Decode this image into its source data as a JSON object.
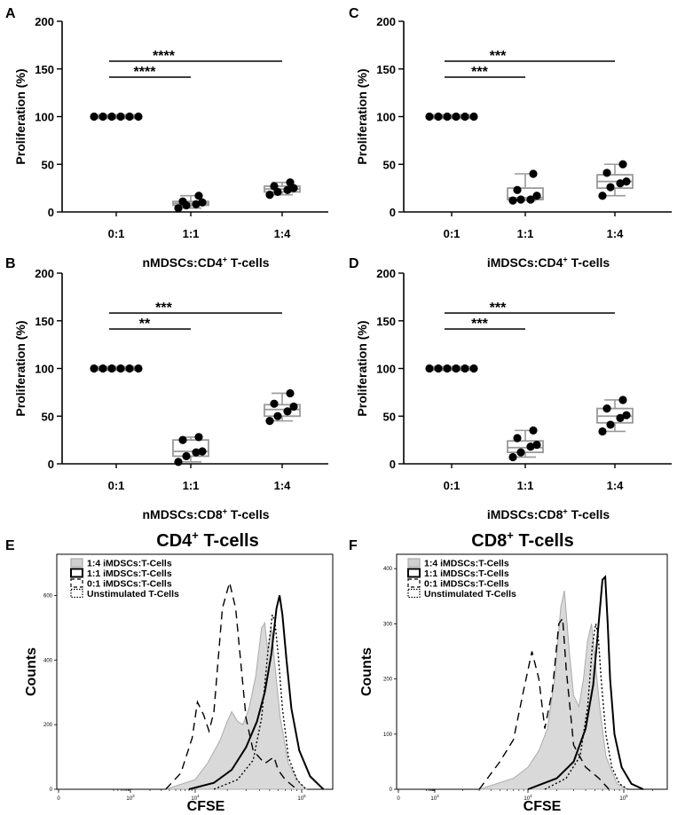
{
  "chart_data": [
    {
      "panel": "A",
      "type": "boxplot",
      "xlabel": "nMDSCs:CD4",
      "xlabel_sup": "+",
      "xlabel_suffix": " T-cells",
      "ylabel": "Proliferation (%)",
      "ylim": [
        0,
        200
      ],
      "yticks": [
        "0",
        "50",
        "100",
        "150",
        "200"
      ],
      "categories": [
        "0:1",
        "1:1",
        "1:4"
      ],
      "points": [
        [
          100,
          100,
          100,
          100,
          100,
          100
        ],
        [
          4,
          7,
          8,
          10,
          11,
          17
        ],
        [
          18,
          21,
          23,
          25,
          27,
          31
        ]
      ],
      "boxes": [
        {
          "min": 100,
          "q1": 100,
          "median": 100,
          "q3": 100,
          "max": 100
        },
        {
          "min": 4,
          "q1": 7,
          "median": 9,
          "q3": 11,
          "max": 17
        },
        {
          "min": 18,
          "q1": 21,
          "median": 24,
          "q3": 27,
          "max": 31
        }
      ],
      "significance": [
        {
          "from": "0:1",
          "to": "1:4",
          "label": "****"
        },
        {
          "from": "0:1",
          "to": "1:1",
          "label": "****"
        }
      ]
    },
    {
      "panel": "B",
      "type": "boxplot",
      "xlabel": "nMDSCs:CD8",
      "xlabel_sup": "+",
      "xlabel_suffix": " T-cells",
      "ylabel": "Proliferation (%)",
      "ylim": [
        0,
        200
      ],
      "yticks": [
        "0",
        "50",
        "100",
        "150",
        "200"
      ],
      "categories": [
        "0:1",
        "1:1",
        "1:4"
      ],
      "points": [
        [
          100,
          100,
          100,
          100,
          100,
          100
        ],
        [
          2,
          8,
          12,
          13,
          25,
          28
        ],
        [
          45,
          50,
          55,
          60,
          63,
          74
        ]
      ],
      "boxes": [
        {
          "min": 100,
          "q1": 100,
          "median": 100,
          "q3": 100,
          "max": 100
        },
        {
          "min": 2,
          "q1": 8,
          "median": 13,
          "q3": 25,
          "max": 28
        },
        {
          "min": 45,
          "q1": 50,
          "median": 57,
          "q3": 62,
          "max": 74
        }
      ],
      "significance": [
        {
          "from": "0:1",
          "to": "1:4",
          "label": "***"
        },
        {
          "from": "0:1",
          "to": "1:1",
          "label": "**"
        }
      ]
    },
    {
      "panel": "C",
      "type": "boxplot",
      "xlabel": "iMDSCs:CD4",
      "xlabel_sup": "+",
      "xlabel_suffix": " T-cells",
      "ylabel": "Proliferation (%)",
      "ylim": [
        0,
        200
      ],
      "yticks": [
        "0",
        "50",
        "100",
        "150",
        "200"
      ],
      "categories": [
        "0:1",
        "1:1",
        "1:4"
      ],
      "points": [
        [
          100,
          100,
          100,
          100,
          100,
          100
        ],
        [
          12,
          13,
          13,
          17,
          23,
          40
        ],
        [
          17,
          26,
          30,
          32,
          41,
          50
        ]
      ],
      "boxes": [
        {
          "min": 100,
          "q1": 100,
          "median": 100,
          "q3": 100,
          "max": 100
        },
        {
          "min": 12,
          "q1": 13,
          "median": 15,
          "q3": 25,
          "max": 40
        },
        {
          "min": 17,
          "q1": 25,
          "median": 32,
          "q3": 39,
          "max": 50
        }
      ],
      "significance": [
        {
          "from": "0:1",
          "to": "1:4",
          "label": "***"
        },
        {
          "from": "0:1",
          "to": "1:1",
          "label": "***"
        }
      ]
    },
    {
      "panel": "D",
      "type": "boxplot",
      "xlabel": "iMDSCs:CD8",
      "xlabel_sup": "+",
      "xlabel_suffix": " T-cells",
      "ylabel": "Proliferation (%)",
      "ylim": [
        0,
        200
      ],
      "yticks": [
        "0",
        "50",
        "100",
        "150",
        "200"
      ],
      "categories": [
        "0:1",
        "1:1",
        "1:4"
      ],
      "points": [
        [
          100,
          100,
          100,
          100,
          100,
          100
        ],
        [
          7,
          12,
          18,
          20,
          27,
          35
        ],
        [
          34,
          41,
          48,
          51,
          58,
          67
        ]
      ],
      "boxes": [
        {
          "min": 100,
          "q1": 100,
          "median": 100,
          "q3": 100,
          "max": 100
        },
        {
          "min": 7,
          "q1": 12,
          "median": 17,
          "q3": 24,
          "max": 35
        },
        {
          "min": 34,
          "q1": 43,
          "median": 50,
          "q3": 58,
          "max": 67
        }
      ],
      "significance": [
        {
          "from": "0:1",
          "to": "1:4",
          "label": "***"
        },
        {
          "from": "0:1",
          "to": "1:1",
          "label": "***"
        }
      ]
    },
    {
      "panel": "E",
      "type": "histogram",
      "title": "CD4",
      "title_sup": "+",
      "title_suffix": " T-cells",
      "xlabel": "CFSE",
      "ylabel": "Counts",
      "xscale": "log",
      "ylim": [
        0,
        700
      ],
      "yticks": [
        "0",
        "200",
        "400",
        "600"
      ],
      "xticks": [
        {
          "v": 1,
          "b": "0",
          "e": ""
        },
        {
          "v": 1000,
          "b": "10",
          "e": "3"
        },
        {
          "v": 10000,
          "b": "10",
          "e": "4"
        },
        {
          "v": 100000,
          "b": "10",
          "e": "5"
        }
      ],
      "legend": [
        "1:4 iMDSCs:T-Cells",
        "1:1 iMDSCs:T-Cells",
        "0:1 iMDSCs:T-Cells",
        "Unstimulated T-Cells"
      ],
      "series": [
        {
          "name": "1:4 iMDSCs:T-Cells",
          "style": "filled",
          "x": [
            3500,
            10000,
            13000,
            17000,
            20000,
            22000,
            25000,
            28000,
            32000,
            37000,
            42000,
            45000,
            48000,
            52000,
            57000,
            63000,
            75000,
            95000,
            110000
          ],
          "y": [
            0,
            30,
            80,
            150,
            210,
            240,
            210,
            200,
            250,
            350,
            500,
            515,
            430,
            500,
            360,
            220,
            80,
            20,
            0
          ]
        },
        {
          "name": "1:1 iMDSCs:T-Cells",
          "style": "solid",
          "x": [
            8000,
            15000,
            22000,
            30000,
            38000,
            45000,
            52000,
            58000,
            62000,
            66000,
            72000,
            80000,
            95000,
            120000,
            160000
          ],
          "y": [
            0,
            20,
            60,
            130,
            210,
            300,
            420,
            560,
            600,
            540,
            400,
            250,
            120,
            40,
            0
          ]
        },
        {
          "name": "0:1 iMDSCs:T-Cells",
          "style": "dashed",
          "x": [
            3500,
            6000,
            9000,
            10500,
            12000,
            13500,
            15000,
            18000,
            21000,
            24000,
            27000,
            30000,
            35000,
            45000,
            55000,
            60000,
            70000,
            90000
          ],
          "y": [
            0,
            50,
            160,
            270,
            230,
            180,
            240,
            560,
            640,
            560,
            380,
            220,
            120,
            80,
            100,
            60,
            30,
            0
          ]
        },
        {
          "name": "Unstimulated T-Cells",
          "style": "dotted",
          "x": [
            15000,
            25000,
            35000,
            42000,
            48000,
            53000,
            56000,
            60000,
            66000,
            75000,
            90000,
            110000
          ],
          "y": [
            0,
            30,
            90,
            220,
            420,
            540,
            520,
            420,
            250,
            100,
            30,
            0
          ]
        }
      ]
    },
    {
      "panel": "F",
      "type": "histogram",
      "title": "CD8",
      "title_sup": "+",
      "title_suffix": " T-cells",
      "xlabel": "CFSE",
      "ylabel": "Counts",
      "xscale": "log",
      "ylim": [
        0,
        410
      ],
      "yticks": [
        "0",
        "100",
        "200",
        "300",
        "400"
      ],
      "xticks": [
        {
          "v": 1,
          "b": "0",
          "e": ""
        },
        {
          "v": 1000,
          "b": "10",
          "e": "3"
        },
        {
          "v": 10000,
          "b": "10",
          "e": "4"
        },
        {
          "v": 100000,
          "b": "10",
          "e": "5"
        }
      ],
      "legend": [
        "1:4 iMDSCs:T-Cells",
        "1:1 iMDSCs:T-Cells",
        "0:1 iMDSCs:T-Cells",
        "Unstimulated T-Cells"
      ],
      "series": [
        {
          "name": "1:4 iMDSCs:T-Cells",
          "style": "filled",
          "x": [
            3000,
            7000,
            10000,
            13000,
            16000,
            19000,
            22000,
            24000,
            27000,
            30000,
            34000,
            38000,
            42000,
            46000,
            50000,
            56000,
            65000,
            85000,
            110000
          ],
          "y": [
            0,
            20,
            40,
            70,
            110,
            200,
            330,
            360,
            250,
            170,
            150,
            200,
            270,
            300,
            240,
            150,
            60,
            10,
            0
          ]
        },
        {
          "name": "1:1 iMDSCs:T-Cells",
          "style": "solid",
          "x": [
            10000,
            20000,
            30000,
            40000,
            48000,
            54000,
            60000,
            64000,
            68000,
            72000,
            80000,
            95000,
            120000,
            160000
          ],
          "y": [
            0,
            20,
            50,
            110,
            190,
            290,
            380,
            385,
            300,
            200,
            100,
            40,
            10,
            0
          ]
        },
        {
          "name": "0:1 iMDSCs:T-Cells",
          "style": "dashed",
          "x": [
            3000,
            5000,
            7000,
            9000,
            11000,
            13000,
            15000,
            18000,
            21000,
            23000,
            25000,
            30000,
            40000,
            55000,
            70000
          ],
          "y": [
            0,
            50,
            90,
            180,
            250,
            200,
            110,
            180,
            300,
            310,
            220,
            80,
            40,
            20,
            0
          ]
        },
        {
          "name": "Unstimulated T-Cells",
          "style": "dotted",
          "x": [
            15000,
            25000,
            35000,
            42000,
            47000,
            51000,
            54000,
            58000,
            65000,
            75000,
            90000,
            110000
          ],
          "y": [
            0,
            20,
            60,
            150,
            260,
            300,
            280,
            200,
            100,
            40,
            10,
            0
          ]
        }
      ]
    }
  ]
}
